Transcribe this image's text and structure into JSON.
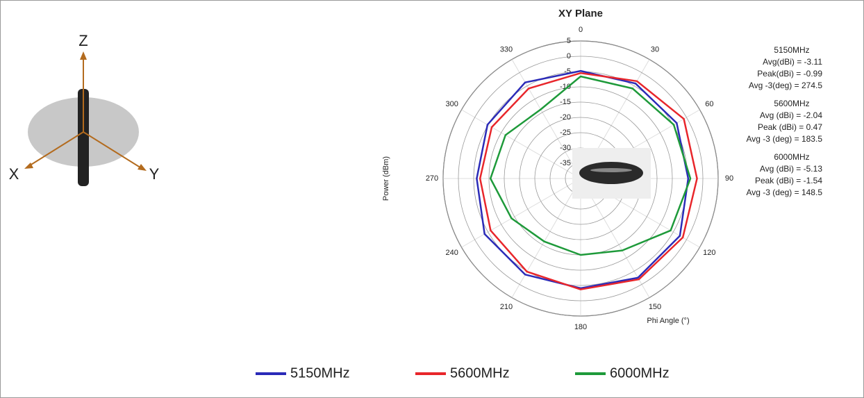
{
  "chart_data": {
    "type": "polar",
    "title": "XY Plane",
    "theta": [
      0,
      30,
      60,
      90,
      120,
      150,
      180,
      210,
      240,
      270,
      300,
      330
    ],
    "thetaticks": [
      0,
      30,
      60,
      90,
      120,
      150,
      180,
      210,
      240,
      270,
      300,
      330
    ],
    "rlim": [
      -40,
      5
    ],
    "rticks": [
      -35,
      -30,
      -25,
      -20,
      -15,
      -10,
      -5,
      0,
      5
    ],
    "r_label": "Power (dBm)",
    "theta_label": "Phi Angle (°)",
    "grid": true,
    "series": [
      {
        "name": "5150MHz",
        "color": "#2b2bb8",
        "values": [
          -4.8,
          -4.1,
          -3.7,
          -4.8,
          -2.5,
          -2.5,
          -4.1,
          -3.7,
          -3.7,
          -6.0,
          -4.8,
          -3.7
        ]
      },
      {
        "name": "5600MHz",
        "color": "#e8262b",
        "values": [
          -5.5,
          -3.2,
          -1.0,
          -1.9,
          -1.4,
          -1.9,
          -3.7,
          -4.8,
          -6.0,
          -7.1,
          -6.4,
          -6.0
        ]
      },
      {
        "name": "6000MHz",
        "color": "#1e9a3a",
        "values": [
          -6.6,
          -6.0,
          -4.8,
          -4.1,
          -6.0,
          -12.8,
          -15.0,
          -16.2,
          -13.9,
          -10.5,
          -11.6,
          -13.9
        ]
      }
    ]
  },
  "stats": [
    {
      "title": "5150MHz",
      "lines": [
        "Avg(dBi) = -3.11",
        "Peak(dBi) = -0.99",
        "Avg -3(deg) = 274.5"
      ]
    },
    {
      "title": "5600MHz",
      "lines": [
        "Avg (dBi) =  -2.04",
        "Peak (dBi) =  0.47",
        "Avg -3 (deg) =  183.5"
      ]
    },
    {
      "title": "6000MHz",
      "lines": [
        "Avg (dBi) =  -5.13",
        "Peak (dBi) =  -1.54",
        "Avg -3 (deg) =  148.5"
      ]
    }
  ],
  "axis_diagram": {
    "labels": [
      "X",
      "Y",
      "Z"
    ]
  }
}
